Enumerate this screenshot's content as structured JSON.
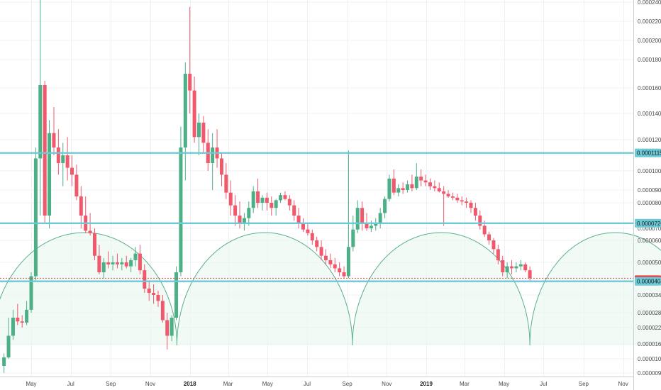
{
  "colors": {
    "up": "#4caf85",
    "down": "#f0586b",
    "hline": "#6cc9d6",
    "arc": "#58b08a",
    "arcFill": "#e8f5ec",
    "grid": "#eef1f4",
    "priceLine": "#e8404f",
    "axis": "#c9ced6",
    "badgeCurrent": "#e8404f"
  },
  "chart_data": {
    "type": "candlestick",
    "x_ticks": [
      "May",
      "Jul",
      "Sep",
      "Nov",
      "2018",
      "Mar",
      "May",
      "Jul",
      "Sep",
      "Nov",
      "2019",
      "Mar",
      "May",
      "Jul",
      "Sep",
      "Nov"
    ],
    "bold_x_ticks": [
      "2018",
      "2019"
    ],
    "y_ticks": [
      "0.00024000",
      "0.00022000",
      "0.00020000",
      "0.00018000",
      "0.00016000",
      "0.00014000",
      "0.00012000",
      "0.00010000",
      "0.00009000",
      "0.00008000",
      "0.00007000",
      "0.00006000",
      "0.00005000",
      "0.00004000",
      "0.00003400",
      "0.00002800",
      "0.00002200",
      "0.00001600",
      "0.00001050",
      "0.00000950"
    ],
    "y_tick_values": [
      0.00024,
      0.00022,
      0.0002,
      0.00018,
      0.00016,
      0.00014,
      0.00012,
      0.0001,
      9e-05,
      8e-05,
      7e-05,
      6e-05,
      5e-05,
      4e-05,
      3.4e-05,
      2.8e-05,
      2.2e-05,
      1.6e-05,
      1.05e-05,
      9.5e-06
    ],
    "horizontal_levels": [
      {
        "label": "0.00011152",
        "value": 0.00011152
      },
      {
        "label": "0.00007200",
        "value": 7.2e-05
      },
      {
        "label": "0.00004046",
        "value": 4.046e-05
      }
    ],
    "current_price_label": "0.00004??",
    "cycle_arcs": [
      {
        "start": "2017-03-01",
        "end": "2017-12-12"
      },
      {
        "start": "2017-12-12",
        "end": "2018-09-09"
      },
      {
        "start": "2018-09-09",
        "end": "2019-06-10"
      },
      {
        "start": "2019-06-10",
        "end": "2020-02-28"
      }
    ],
    "candles": [
      {
        "d": "2017-03-20",
        "o": 1e-05,
        "h": 1.25e-05,
        "l": 9.5e-06,
        "c": 1.1e-05
      },
      {
        "d": "2017-03-27",
        "o": 1.1e-05,
        "h": 2.6e-05,
        "l": 1.05e-05,
        "c": 1.9e-05
      },
      {
        "d": "2017-04-03",
        "o": 1.9e-05,
        "h": 2.9e-05,
        "l": 1.75e-05,
        "c": 2.6e-05
      },
      {
        "d": "2017-04-10",
        "o": 2.6e-05,
        "h": 3.1e-05,
        "l": 2.3e-05,
        "c": 2.45e-05
      },
      {
        "d": "2017-04-17",
        "o": 2.45e-05,
        "h": 2.7e-05,
        "l": 2.2e-05,
        "c": 2.4e-05
      },
      {
        "d": "2017-04-24",
        "o": 2.4e-05,
        "h": 3.2e-05,
        "l": 2.3e-05,
        "c": 2.9e-05
      },
      {
        "d": "2017-05-01",
        "o": 2.9e-05,
        "h": 4.5e-05,
        "l": 2.8e-05,
        "c": 4.3e-05
      },
      {
        "d": "2017-05-08",
        "o": 4.3e-05,
        "h": 0.000115,
        "l": 4.1e-05,
        "c": 0.000108
      },
      {
        "d": "2017-05-15",
        "o": 0.000108,
        "h": 0.000245,
        "l": 7.5e-05,
        "c": 0.000162
      },
      {
        "d": "2017-05-22",
        "o": 0.000162,
        "h": 0.000165,
        "l": 7.2e-05,
        "c": 7.5e-05
      },
      {
        "d": "2017-05-29",
        "o": 7.5e-05,
        "h": 0.000135,
        "l": 7e-05,
        "c": 0.000125
      },
      {
        "d": "2017-06-05",
        "o": 0.000125,
        "h": 0.000145,
        "l": 0.00011,
        "c": 0.000115
      },
      {
        "d": "2017-06-12",
        "o": 0.000115,
        "h": 0.000128,
        "l": 9.8e-05,
        "c": 0.000105
      },
      {
        "d": "2017-06-19",
        "o": 0.000105,
        "h": 0.000118,
        "l": 9.2e-05,
        "c": 0.00011
      },
      {
        "d": "2017-06-26",
        "o": 0.00011,
        "h": 0.000122,
        "l": 9.5e-05,
        "c": 0.000102
      },
      {
        "d": "2017-07-03",
        "o": 0.000102,
        "h": 0.00011,
        "l": 9.2e-05,
        "c": 9.8e-05
      },
      {
        "d": "2017-07-10",
        "o": 9.8e-05,
        "h": 0.000104,
        "l": 8.2e-05,
        "c": 8.5e-05
      },
      {
        "d": "2017-07-17",
        "o": 8.5e-05,
        "h": 9.2e-05,
        "l": 7e-05,
        "c": 7.5e-05
      },
      {
        "d": "2017-07-24",
        "o": 7.5e-05,
        "h": 8.5e-05,
        "l": 6.6e-05,
        "c": 6.8e-05
      },
      {
        "d": "2017-07-31",
        "o": 6.8e-05,
        "h": 7.6e-05,
        "l": 6.4e-05,
        "c": 6.6e-05
      },
      {
        "d": "2017-08-07",
        "o": 6.6e-05,
        "h": 7e-05,
        "l": 5.1e-05,
        "c": 5.3e-05
      },
      {
        "d": "2017-08-14",
        "o": 5.3e-05,
        "h": 5.8e-05,
        "l": 4.4e-05,
        "c": 4.5e-05
      },
      {
        "d": "2017-08-21",
        "o": 4.5e-05,
        "h": 5.2e-05,
        "l": 4.2e-05,
        "c": 5e-05
      },
      {
        "d": "2017-08-28",
        "o": 5e-05,
        "h": 5.5e-05,
        "l": 4.7e-05,
        "c": 4.9e-05
      },
      {
        "d": "2017-09-04",
        "o": 4.9e-05,
        "h": 5.3e-05,
        "l": 4.6e-05,
        "c": 5e-05
      },
      {
        "d": "2017-09-11",
        "o": 5e-05,
        "h": 5.4e-05,
        "l": 4.7e-05,
        "c": 4.9e-05
      },
      {
        "d": "2017-09-18",
        "o": 4.9e-05,
        "h": 5.2e-05,
        "l": 4.6e-05,
        "c": 5e-05
      },
      {
        "d": "2017-09-25",
        "o": 5e-05,
        "h": 5.3e-05,
        "l": 4.7e-05,
        "c": 4.8e-05
      },
      {
        "d": "2017-10-02",
        "o": 4.8e-05,
        "h": 5.2e-05,
        "l": 4.5e-05,
        "c": 5.1e-05
      },
      {
        "d": "2017-10-09",
        "o": 5.1e-05,
        "h": 5.7e-05,
        "l": 4.8e-05,
        "c": 5.4e-05
      },
      {
        "d": "2017-10-16",
        "o": 5.4e-05,
        "h": 5.8e-05,
        "l": 4.4e-05,
        "c": 4.6e-05
      },
      {
        "d": "2017-10-23",
        "o": 4.6e-05,
        "h": 4.9e-05,
        "l": 3.5e-05,
        "c": 3.7e-05
      },
      {
        "d": "2017-10-30",
        "o": 3.7e-05,
        "h": 4.1e-05,
        "l": 3.2e-05,
        "c": 3.5e-05
      },
      {
        "d": "2017-11-06",
        "o": 3.5e-05,
        "h": 3.9e-05,
        "l": 3.1e-05,
        "c": 3.4e-05
      },
      {
        "d": "2017-11-13",
        "o": 3.4e-05,
        "h": 3.6e-05,
        "l": 3e-05,
        "c": 3.2e-05
      },
      {
        "d": "2017-11-20",
        "o": 3.2e-05,
        "h": 3.4e-05,
        "l": 2.4e-05,
        "c": 2.5e-05
      },
      {
        "d": "2017-11-27",
        "o": 2.5e-05,
        "h": 2.8e-05,
        "l": 1.4e-05,
        "c": 1.9e-05
      },
      {
        "d": "2017-12-04",
        "o": 1.9e-05,
        "h": 2.7e-05,
        "l": 1.7e-05,
        "c": 2.6e-05
      },
      {
        "d": "2017-12-11",
        "o": 2.6e-05,
        "h": 4.8e-05,
        "l": 2.5e-05,
        "c": 4.5e-05
      },
      {
        "d": "2017-12-18",
        "o": 4.5e-05,
        "h": 0.00013,
        "l": 4.3e-05,
        "c": 0.000115
      },
      {
        "d": "2017-12-25",
        "o": 0.000115,
        "h": 0.000178,
        "l": 9.5e-05,
        "c": 0.00017
      },
      {
        "d": "2018-01-01",
        "o": 0.00017,
        "h": 0.000235,
        "l": 0.00014,
        "c": 0.000158
      },
      {
        "d": "2018-01-08",
        "o": 0.000158,
        "h": 0.000168,
        "l": 0.000118,
        "c": 0.000122
      },
      {
        "d": "2018-01-15",
        "o": 0.000122,
        "h": 0.00014,
        "l": 0.00011,
        "c": 0.000133
      },
      {
        "d": "2018-01-22",
        "o": 0.000133,
        "h": 0.000138,
        "l": 0.000112,
        "c": 0.000118
      },
      {
        "d": "2018-01-29",
        "o": 0.000118,
        "h": 0.000128,
        "l": 0.0001,
        "c": 0.000105
      },
      {
        "d": "2018-02-05",
        "o": 0.000105,
        "h": 0.000125,
        "l": 9e-05,
        "c": 0.000115
      },
      {
        "d": "2018-02-12",
        "o": 0.000115,
        "h": 0.000128,
        "l": 0.000102,
        "c": 0.000108
      },
      {
        "d": "2018-02-19",
        "o": 0.000108,
        "h": 0.000112,
        "l": 9.2e-05,
        "c": 9.8e-05
      },
      {
        "d": "2018-02-26",
        "o": 9.8e-05,
        "h": 0.000105,
        "l": 8.3e-05,
        "c": 8.8e-05
      },
      {
        "d": "2018-03-05",
        "o": 8.8e-05,
        "h": 9.5e-05,
        "l": 7.5e-05,
        "c": 7.9e-05
      },
      {
        "d": "2018-03-12",
        "o": 7.9e-05,
        "h": 8.6e-05,
        "l": 7.1e-05,
        "c": 7.5e-05
      },
      {
        "d": "2018-03-19",
        "o": 7.5e-05,
        "h": 8.1e-05,
        "l": 7e-05,
        "c": 7.2e-05
      },
      {
        "d": "2018-03-26",
        "o": 7.2e-05,
        "h": 7.6e-05,
        "l": 6.8e-05,
        "c": 7.4e-05
      },
      {
        "d": "2018-04-02",
        "o": 7.4e-05,
        "h": 8.1e-05,
        "l": 7.1e-05,
        "c": 7.8e-05
      },
      {
        "d": "2018-04-09",
        "o": 7.8e-05,
        "h": 9.2e-05,
        "l": 7.6e-05,
        "c": 8.9e-05
      },
      {
        "d": "2018-04-16",
        "o": 8.9e-05,
        "h": 9.6e-05,
        "l": 7.8e-05,
        "c": 8e-05
      },
      {
        "d": "2018-04-23",
        "o": 8e-05,
        "h": 8.6e-05,
        "l": 7.7e-05,
        "c": 8.4e-05
      },
      {
        "d": "2018-04-30",
        "o": 8.4e-05,
        "h": 8.8e-05,
        "l": 7.7e-05,
        "c": 8e-05
      },
      {
        "d": "2018-05-07",
        "o": 8e-05,
        "h": 8.5e-05,
        "l": 7.5e-05,
        "c": 7.8e-05
      },
      {
        "d": "2018-05-14",
        "o": 7.8e-05,
        "h": 8.3e-05,
        "l": 7.5e-05,
        "c": 8.2e-05
      },
      {
        "d": "2018-05-21",
        "o": 8.2e-05,
        "h": 8.8e-05,
        "l": 8e-05,
        "c": 8.6e-05
      },
      {
        "d": "2018-05-28",
        "o": 8.6e-05,
        "h": 8.9e-05,
        "l": 8.2e-05,
        "c": 8.3e-05
      },
      {
        "d": "2018-06-04",
        "o": 8.3e-05,
        "h": 8.6e-05,
        "l": 7.7e-05,
        "c": 7.9e-05
      },
      {
        "d": "2018-06-11",
        "o": 7.9e-05,
        "h": 8.2e-05,
        "l": 7.3e-05,
        "c": 7.5e-05
      },
      {
        "d": "2018-06-18",
        "o": 7.5e-05,
        "h": 7.8e-05,
        "l": 7e-05,
        "c": 7.2e-05
      },
      {
        "d": "2018-06-25",
        "o": 7.2e-05,
        "h": 7.4e-05,
        "l": 6.7e-05,
        "c": 6.9e-05
      },
      {
        "d": "2018-07-02",
        "o": 6.9e-05,
        "h": 7.2e-05,
        "l": 6.4e-05,
        "c": 6.6e-05
      },
      {
        "d": "2018-07-09",
        "o": 6.6e-05,
        "h": 6.9e-05,
        "l": 5.8e-05,
        "c": 6e-05
      },
      {
        "d": "2018-07-16",
        "o": 6e-05,
        "h": 6.3e-05,
        "l": 5.5e-05,
        "c": 5.7e-05
      },
      {
        "d": "2018-07-23",
        "o": 5.7e-05,
        "h": 6e-05,
        "l": 5.1e-05,
        "c": 5.3e-05
      },
      {
        "d": "2018-07-30",
        "o": 5.3e-05,
        "h": 5.6e-05,
        "l": 4.9e-05,
        "c": 5.1e-05
      },
      {
        "d": "2018-08-06",
        "o": 5.1e-05,
        "h": 5.4e-05,
        "l": 4.7e-05,
        "c": 4.9e-05
      },
      {
        "d": "2018-08-13",
        "o": 4.9e-05,
        "h": 5.2e-05,
        "l": 4.5e-05,
        "c": 4.7e-05
      },
      {
        "d": "2018-08-20",
        "o": 4.7e-05,
        "h": 5e-05,
        "l": 4.3e-05,
        "c": 4.5e-05
      },
      {
        "d": "2018-08-27",
        "o": 4.5e-05,
        "h": 4.8e-05,
        "l": 4.2e-05,
        "c": 4.3e-05
      },
      {
        "d": "2018-09-03",
        "o": 4.3e-05,
        "h": 0.000113,
        "l": 4.2e-05,
        "c": 5.7e-05
      },
      {
        "d": "2018-09-10",
        "o": 5.7e-05,
        "h": 7.5e-05,
        "l": 5.5e-05,
        "c": 6.9e-05
      },
      {
        "d": "2018-09-17",
        "o": 6.9e-05,
        "h": 8.2e-05,
        "l": 6.6e-05,
        "c": 7.8e-05
      },
      {
        "d": "2018-09-24",
        "o": 7.8e-05,
        "h": 8.1e-05,
        "l": 6.8e-05,
        "c": 7.2e-05
      },
      {
        "d": "2018-10-01",
        "o": 7.2e-05,
        "h": 7.6e-05,
        "l": 6.8e-05,
        "c": 7e-05
      },
      {
        "d": "2018-10-08",
        "o": 7e-05,
        "h": 7.3e-05,
        "l": 6.7e-05,
        "c": 7.1e-05
      },
      {
        "d": "2018-10-15",
        "o": 7.1e-05,
        "h": 7.4e-05,
        "l": 6.8e-05,
        "c": 7.2e-05
      },
      {
        "d": "2018-10-22",
        "o": 7.2e-05,
        "h": 7.8e-05,
        "l": 7e-05,
        "c": 7.6e-05
      },
      {
        "d": "2018-10-29",
        "o": 7.6e-05,
        "h": 8.5e-05,
        "l": 7.4e-05,
        "c": 8.3e-05
      },
      {
        "d": "2018-11-05",
        "o": 8.3e-05,
        "h": 9.8e-05,
        "l": 8.1e-05,
        "c": 9.6e-05
      },
      {
        "d": "2018-11-12",
        "o": 9.6e-05,
        "h": 0.000101,
        "l": 8.6e-05,
        "c": 8.8e-05
      },
      {
        "d": "2018-11-19",
        "o": 8.8e-05,
        "h": 9.3e-05,
        "l": 8.5e-05,
        "c": 9.1e-05
      },
      {
        "d": "2018-11-26",
        "o": 9.1e-05,
        "h": 9.4e-05,
        "l": 8.7e-05,
        "c": 9e-05
      },
      {
        "d": "2018-12-03",
        "o": 9e-05,
        "h": 9.5e-05,
        "l": 8.8e-05,
        "c": 9.3e-05
      },
      {
        "d": "2018-12-10",
        "o": 9.3e-05,
        "h": 9.8e-05,
        "l": 8.9e-05,
        "c": 9.1e-05
      },
      {
        "d": "2018-12-17",
        "o": 9.1e-05,
        "h": 0.000105,
        "l": 9e-05,
        "c": 9.7e-05
      },
      {
        "d": "2018-12-24",
        "o": 9.7e-05,
        "h": 0.000101,
        "l": 9.2e-05,
        "c": 9.5e-05
      },
      {
        "d": "2018-12-31",
        "o": 9.5e-05,
        "h": 9.8e-05,
        "l": 9.2e-05,
        "c": 9.4e-05
      },
      {
        "d": "2019-01-07",
        "o": 9.4e-05,
        "h": 9.6e-05,
        "l": 9e-05,
        "c": 9.2e-05
      },
      {
        "d": "2019-01-14",
        "o": 9.2e-05,
        "h": 9.5e-05,
        "l": 8.9e-05,
        "c": 9.1e-05
      },
      {
        "d": "2019-01-21",
        "o": 9.1e-05,
        "h": 9.4e-05,
        "l": 8.8e-05,
        "c": 8.9e-05
      },
      {
        "d": "2019-01-28",
        "o": 8.9e-05,
        "h": 9.2e-05,
        "l": 7.1e-05,
        "c": 8.7e-05
      },
      {
        "d": "2019-02-04",
        "o": 8.7e-05,
        "h": 9e-05,
        "l": 8.4e-05,
        "c": 8.5e-05
      },
      {
        "d": "2019-02-11",
        "o": 8.5e-05,
        "h": 8.8e-05,
        "l": 8.2e-05,
        "c": 8.4e-05
      },
      {
        "d": "2019-02-18",
        "o": 8.4e-05,
        "h": 8.7e-05,
        "l": 8e-05,
        "c": 8.2e-05
      },
      {
        "d": "2019-02-25",
        "o": 8.2e-05,
        "h": 8.5e-05,
        "l": 7.9e-05,
        "c": 8.1e-05
      },
      {
        "d": "2019-03-04",
        "o": 8.1e-05,
        "h": 8.4e-05,
        "l": 7.8e-05,
        "c": 8e-05
      },
      {
        "d": "2019-03-11",
        "o": 8e-05,
        "h": 8.2e-05,
        "l": 7.6e-05,
        "c": 7.8e-05
      },
      {
        "d": "2019-03-18",
        "o": 7.8e-05,
        "h": 8e-05,
        "l": 7.3e-05,
        "c": 7.5e-05
      },
      {
        "d": "2019-03-25",
        "o": 7.5e-05,
        "h": 7.7e-05,
        "l": 6.9e-05,
        "c": 7.1e-05
      },
      {
        "d": "2019-04-01",
        "o": 7.1e-05,
        "h": 7.3e-05,
        "l": 6.3e-05,
        "c": 6.5e-05
      },
      {
        "d": "2019-04-08",
        "o": 6.5e-05,
        "h": 6.7e-05,
        "l": 5.8e-05,
        "c": 6e-05
      },
      {
        "d": "2019-04-15",
        "o": 6e-05,
        "h": 6.2e-05,
        "l": 5.4e-05,
        "c": 5.6e-05
      },
      {
        "d": "2019-04-22",
        "o": 5.6e-05,
        "h": 5.8e-05,
        "l": 4.9e-05,
        "c": 5.1e-05
      },
      {
        "d": "2019-04-29",
        "o": 5.1e-05,
        "h": 5.3e-05,
        "l": 4.3e-05,
        "c": 4.5e-05
      },
      {
        "d": "2019-05-06",
        "o": 4.5e-05,
        "h": 5e-05,
        "l": 4.2e-05,
        "c": 4.8e-05
      },
      {
        "d": "2019-05-13",
        "o": 4.8e-05,
        "h": 5.1e-05,
        "l": 4.4e-05,
        "c": 4.7e-05
      },
      {
        "d": "2019-05-20",
        "o": 4.7e-05,
        "h": 5e-05,
        "l": 4.5e-05,
        "c": 4.8e-05
      },
      {
        "d": "2019-05-27",
        "o": 4.8e-05,
        "h": 5.1e-05,
        "l": 4.6e-05,
        "c": 4.9e-05
      },
      {
        "d": "2019-06-03",
        "o": 4.9e-05,
        "h": 5e-05,
        "l": 4.5e-05,
        "c": 4.6e-05
      },
      {
        "d": "2019-06-10",
        "o": 4.6e-05,
        "h": 4.8e-05,
        "l": 4.1e-05,
        "c": 4.2e-05
      }
    ]
  }
}
